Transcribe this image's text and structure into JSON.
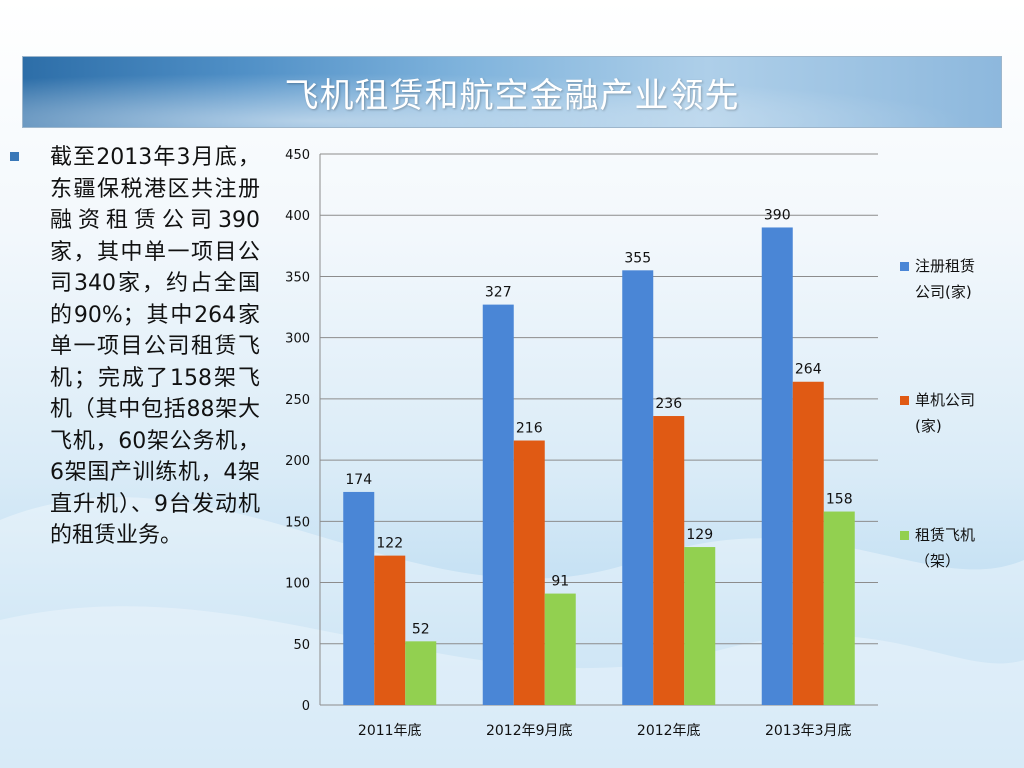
{
  "slide": {
    "title": "飞机租赁和航空金融产业领先",
    "body_text": "截至2013年3月底，东疆保税港区共注册融资租赁公司390家，其中单一项目公司340家，约占全国的90%；其中264家单一项目公司租赁飞机；完成了158架飞机（其中包括88架大飞机，60架公务机，6架国产训练机，4架直升机）、9台发动机的租赁业务。"
  },
  "colors": {
    "series1": "#4a86d6",
    "series2": "#e05a14",
    "series3": "#92d050",
    "gridline": "#8c8c8c",
    "bullet": "#3a78b8"
  },
  "chart_data": {
    "type": "bar",
    "categories": [
      "2011年底",
      "2012年9月底",
      "2012年底",
      "2013年3月底"
    ],
    "series": [
      {
        "name": "注册租赁公司(家)",
        "values": [
          174,
          327,
          355,
          390
        ]
      },
      {
        "name": "单机公司(家)",
        "values": [
          122,
          216,
          236,
          264
        ]
      },
      {
        "name": "租赁飞机（架）",
        "values": [
          52,
          91,
          129,
          158
        ]
      }
    ],
    "ylim": [
      0,
      450
    ],
    "yticks": [
      0,
      50,
      100,
      150,
      200,
      250,
      300,
      350,
      400,
      450
    ],
    "grid": true,
    "legend": "right",
    "legend_lines": [
      [
        "注册租赁",
        "公司(家)"
      ],
      [
        "单机公司",
        "(家)"
      ],
      [
        "租赁飞机",
        "（架）"
      ]
    ]
  }
}
